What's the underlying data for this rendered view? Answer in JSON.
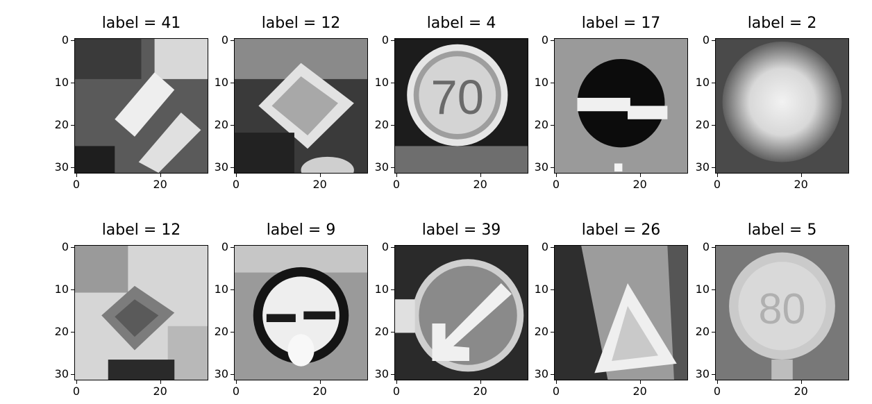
{
  "panels": [
    {
      "title": "label = 41",
      "icon": "traffic-sign-diagonal-bars-image"
    },
    {
      "title": "label = 12",
      "icon": "traffic-sign-diamond-image"
    },
    {
      "title": "label = 4",
      "icon": "traffic-sign-70-limit-image",
      "sign_text": "70"
    },
    {
      "title": "label = 17",
      "icon": "traffic-sign-no-entry-image"
    },
    {
      "title": "label = 2",
      "icon": "traffic-sign-blurred-circle-image"
    },
    {
      "title": "label = 12",
      "icon": "traffic-sign-diamond-image"
    },
    {
      "title": "label = 9",
      "icon": "traffic-sign-no-passing-image"
    },
    {
      "title": "label = 39",
      "icon": "traffic-sign-keep-left-image"
    },
    {
      "title": "label = 26",
      "icon": "traffic-sign-triangle-image"
    },
    {
      "title": "label = 5",
      "icon": "traffic-sign-80-limit-image",
      "sign_text": "80"
    }
  ],
  "y_ticks": [
    "0",
    "10",
    "20",
    "30"
  ],
  "x_ticks": [
    "0",
    "20"
  ]
}
